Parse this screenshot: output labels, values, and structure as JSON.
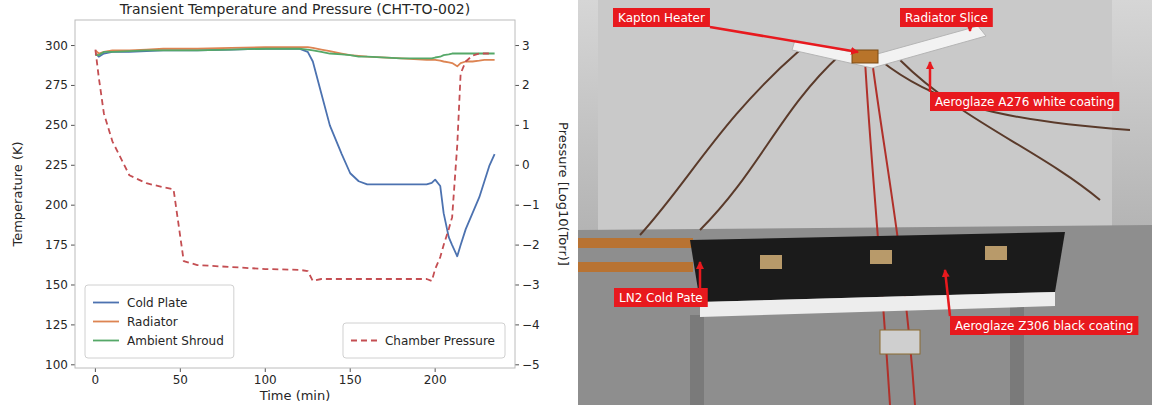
{
  "chart_data": {
    "type": "line",
    "title": "Transient Temperature and Pressure (CHT-TO-002)",
    "x_label": "Time (min)",
    "y_label": "Temperature (K)",
    "y2_label": "Pressure [Log10(Torr)]",
    "x": [
      0,
      2,
      5,
      10,
      20,
      30,
      40,
      46,
      49,
      52,
      60,
      80,
      100,
      120,
      125,
      128,
      133,
      138,
      145,
      150,
      155,
      160,
      180,
      195,
      198,
      200,
      203,
      205,
      208,
      210,
      213,
      215,
      218,
      222,
      226,
      229,
      232,
      235
    ],
    "series": [
      {
        "name": "Cold Plate",
        "color": "#4c72b0",
        "line_style": "solid",
        "values": [
          295,
          293,
          295,
          296,
          296,
          296.5,
          297,
          297,
          297,
          297,
          297,
          297.5,
          298,
          298,
          296,
          290,
          270,
          250,
          232,
          220,
          215,
          213,
          213,
          213,
          214,
          216,
          212,
          195,
          180,
          175,
          168,
          175,
          185,
          195,
          205,
          215,
          225,
          232
        ]
      },
      {
        "name": "Radiator",
        "color": "#dd8452",
        "line_style": "solid",
        "values": [
          297,
          295,
          296,
          297,
          297,
          297.5,
          298,
          298,
          298,
          298,
          298,
          298.5,
          299,
          299,
          299,
          298.5,
          297.5,
          296.5,
          295,
          294,
          293.5,
          293,
          292,
          291,
          291,
          291,
          290.5,
          290,
          289.5,
          289,
          287,
          289,
          290,
          290,
          290.5,
          291,
          291,
          291
        ]
      },
      {
        "name": "Ambient Shroud",
        "color": "#55a868",
        "line_style": "solid",
        "values": [
          294,
          294,
          296,
          296,
          296.5,
          297,
          297,
          297,
          297,
          297,
          297,
          297.5,
          298,
          298,
          297.5,
          297,
          296,
          295,
          294.5,
          294,
          293,
          293,
          292,
          292,
          292,
          292.5,
          293,
          294,
          294.5,
          295,
          295,
          295,
          295,
          295,
          295,
          295,
          295,
          295
        ]
      },
      {
        "name": "Chamber Pressure",
        "color": "#c44e52",
        "line_style": "dashed",
        "axis": "y2",
        "values": [
          2.9,
          2.2,
          1.3,
          0.6,
          -0.25,
          -0.45,
          -0.55,
          -0.6,
          -1.5,
          -2.4,
          -2.5,
          -2.55,
          -2.6,
          -2.62,
          -2.65,
          -2.9,
          -2.85,
          -2.85,
          -2.85,
          -2.85,
          -2.85,
          -2.85,
          -2.85,
          -2.85,
          -2.9,
          -2.6,
          -2.3,
          -2.0,
          -1.6,
          -1.3,
          0.5,
          2.3,
          2.6,
          2.75,
          2.8,
          2.8,
          2.8,
          null
        ]
      }
    ],
    "xlim": [
      -12,
      247
    ],
    "xticks": [
      0,
      50,
      100,
      150,
      200
    ],
    "ylim": [
      98,
      316
    ],
    "yticks": [
      100,
      125,
      150,
      175,
      200,
      225,
      250,
      275,
      300
    ],
    "y2lim": [
      -5.08,
      3.64
    ],
    "y2ticks": [
      {
        "value": -5,
        "label": "−5"
      },
      {
        "value": -4,
        "label": "−4"
      },
      {
        "value": -3,
        "label": "−3"
      },
      {
        "value": -2,
        "label": "−2"
      },
      {
        "value": -1,
        "label": "−1"
      },
      0,
      1,
      2,
      3
    ],
    "grid": false,
    "legend": "lower left"
  },
  "photo": {
    "labels": [
      "Kapton Heater",
      "Radiator Slice",
      "Aeroglaze A276 white coating",
      "LN2 Cold Pate",
      "Aeroglaze Z306 black coating"
    ]
  }
}
